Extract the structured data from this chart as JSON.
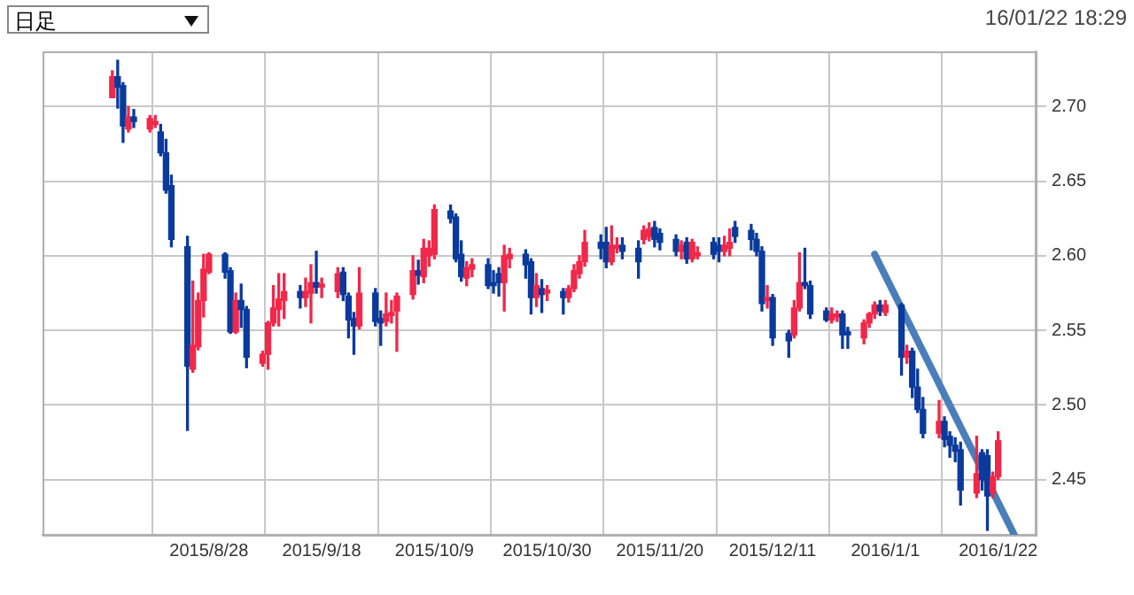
{
  "chart_data": {
    "type": "candlestick",
    "annotations": [
      "日足",
      "16/01/22 18:29"
    ],
    "x": [
      "2015-08-10",
      "2015-08-11",
      "2015-08-12",
      "2015-08-13",
      "2015-08-14",
      "2015-08-17",
      "2015-08-18",
      "2015-08-19",
      "2015-08-20",
      "2015-08-21",
      "2015-08-24",
      "2015-08-25",
      "2015-08-26",
      "2015-08-27",
      "2015-08-28",
      "2015-08-31",
      "2015-09-01",
      "2015-09-02",
      "2015-09-03",
      "2015-09-04",
      "2015-09-07",
      "2015-09-08",
      "2015-09-09",
      "2015-09-10",
      "2015-09-11",
      "2015-09-14",
      "2015-09-15",
      "2015-09-16",
      "2015-09-17",
      "2015-09-18",
      "2015-09-21",
      "2015-09-22",
      "2015-09-23",
      "2015-09-24",
      "2015-09-25",
      "2015-09-28",
      "2015-09-29",
      "2015-09-30",
      "2015-10-01",
      "2015-10-02",
      "2015-10-05",
      "2015-10-06",
      "2015-10-07",
      "2015-10-08",
      "2015-10-09",
      "2015-10-12",
      "2015-10-13",
      "2015-10-14",
      "2015-10-15",
      "2015-10-16",
      "2015-10-19",
      "2015-10-20",
      "2015-10-21",
      "2015-10-22",
      "2015-10-23",
      "2015-10-26",
      "2015-10-27",
      "2015-10-28",
      "2015-10-29",
      "2015-10-30",
      "2015-11-02",
      "2015-11-03",
      "2015-11-04",
      "2015-11-05",
      "2015-11-06",
      "2015-11-09",
      "2015-11-10",
      "2015-11-11",
      "2015-11-12",
      "2015-11-13",
      "2015-11-16",
      "2015-11-17",
      "2015-11-18",
      "2015-11-19",
      "2015-11-20",
      "2015-11-23",
      "2015-11-24",
      "2015-11-25",
      "2015-11-26",
      "2015-11-27",
      "2015-11-30",
      "2015-12-01",
      "2015-12-02",
      "2015-12-03",
      "2015-12-04",
      "2015-12-07",
      "2015-12-08",
      "2015-12-09",
      "2015-12-10",
      "2015-12-11",
      "2015-12-14",
      "2015-12-15",
      "2015-12-16",
      "2015-12-17",
      "2015-12-18",
      "2015-12-21",
      "2015-12-22",
      "2015-12-23",
      "2015-12-24",
      "2015-12-25",
      "2015-12-28",
      "2015-12-29",
      "2015-12-30",
      "2015-12-31",
      "2016-01-01",
      "2016-01-04",
      "2016-01-05",
      "2016-01-06",
      "2016-01-07",
      "2016-01-08",
      "2016-01-11",
      "2016-01-12",
      "2016-01-13",
      "2016-01-14",
      "2016-01-15",
      "2016-01-18",
      "2016-01-19",
      "2016-01-20",
      "2016-01-21",
      "2016-01-22"
    ],
    "ohlc": [
      [
        2.706,
        2.724,
        2.706,
        2.72
      ],
      [
        2.72,
        2.731,
        2.699,
        2.713
      ],
      [
        2.714,
        2.716,
        2.676,
        2.687
      ],
      [
        2.685,
        2.7,
        2.683,
        2.693
      ],
      [
        2.693,
        2.698,
        2.686,
        2.69
      ],
      [
        2.685,
        2.694,
        2.683,
        2.692
      ],
      [
        2.688,
        2.694,
        2.686,
        2.69
      ],
      [
        2.683,
        2.688,
        2.667,
        2.669
      ],
      [
        2.669,
        2.678,
        2.642,
        2.644
      ],
      [
        2.647,
        2.654,
        2.606,
        2.611
      ],
      [
        2.606,
        2.613,
        2.483,
        2.526
      ],
      [
        2.524,
        2.583,
        2.522,
        2.54
      ],
      [
        2.539,
        2.575,
        2.537,
        2.57
      ],
      [
        2.57,
        2.601,
        2.559,
        2.591
      ],
      [
        2.589,
        2.602,
        2.588,
        2.601
      ],
      [
        2.601,
        2.602,
        2.585,
        2.589
      ],
      [
        2.59,
        2.592,
        2.548,
        2.549
      ],
      [
        2.549,
        2.575,
        2.548,
        2.57
      ],
      [
        2.57,
        2.581,
        2.552,
        2.564
      ],
      [
        2.564,
        2.566,
        2.525,
        2.532
      ],
      [
        2.528,
        2.536,
        2.526,
        2.534
      ],
      [
        2.534,
        2.556,
        2.524,
        2.555
      ],
      [
        2.555,
        2.58,
        2.553,
        2.565
      ],
      [
        2.564,
        2.588,
        2.553,
        2.571
      ],
      [
        2.57,
        2.588,
        2.558,
        2.576
      ],
      [
        2.576,
        2.58,
        2.565,
        2.572
      ],
      [
        2.572,
        2.585,
        2.566,
        2.576
      ],
      [
        2.575,
        2.594,
        2.555,
        2.582
      ],
      [
        2.582,
        2.603,
        2.575,
        2.579
      ],
      [
        2.579,
        2.585,
        2.572,
        2.581
      ],
      [
        2.576,
        2.592,
        2.572,
        2.588
      ],
      [
        2.589,
        2.592,
        2.57,
        2.574
      ],
      [
        2.573,
        2.575,
        2.545,
        2.557
      ],
      [
        2.558,
        2.562,
        2.534,
        2.553
      ],
      [
        2.553,
        2.592,
        2.551,
        2.575
      ],
      [
        2.575,
        2.578,
        2.553,
        2.556
      ],
      [
        2.558,
        2.563,
        2.54,
        2.555
      ],
      [
        2.556,
        2.575,
        2.553,
        2.561
      ],
      [
        2.56,
        2.57,
        2.555,
        2.562
      ],
      [
        2.563,
        2.575,
        2.536,
        2.573
      ],
      [
        2.574,
        2.6,
        2.571,
        2.59
      ],
      [
        2.59,
        2.597,
        2.581,
        2.587
      ],
      [
        2.586,
        2.611,
        2.582,
        2.605
      ],
      [
        2.6,
        2.61,
        2.593,
        2.605
      ],
      [
        2.601,
        2.634,
        2.598,
        2.631
      ],
      [
        2.63,
        2.634,
        2.622,
        2.625
      ],
      [
        2.626,
        2.628,
        2.596,
        2.598
      ],
      [
        2.601,
        2.61,
        2.583,
        2.586
      ],
      [
        2.585,
        2.596,
        2.58,
        2.592
      ],
      [
        2.591,
        2.598,
        2.586,
        2.594
      ],
      [
        2.594,
        2.598,
        2.578,
        2.58
      ],
      [
        2.582,
        2.59,
        2.575,
        2.58
      ],
      [
        2.588,
        2.592,
        2.573,
        2.582
      ],
      [
        2.582,
        2.607,
        2.563,
        2.6
      ],
      [
        2.598,
        2.605,
        2.592,
        2.601
      ],
      [
        2.601,
        2.604,
        2.585,
        2.594
      ],
      [
        2.596,
        2.598,
        2.561,
        2.572
      ],
      [
        2.572,
        2.588,
        2.566,
        2.58
      ],
      [
        2.578,
        2.584,
        2.562,
        2.574
      ],
      [
        2.575,
        2.58,
        2.57,
        2.577
      ],
      [
        2.576,
        2.578,
        2.561,
        2.572
      ],
      [
        2.572,
        2.58,
        2.569,
        2.578
      ],
      [
        2.578,
        2.594,
        2.576,
        2.59
      ],
      [
        2.588,
        2.6,
        2.585,
        2.596
      ],
      [
        2.596,
        2.617,
        2.593,
        2.609
      ],
      [
        2.609,
        2.614,
        2.598,
        2.605
      ],
      [
        2.609,
        2.619,
        2.592,
        2.596
      ],
      [
        2.596,
        2.62,
        2.594,
        2.607
      ],
      [
        2.605,
        2.612,
        2.602,
        2.607
      ],
      [
        2.607,
        2.612,
        2.598,
        2.603
      ],
      [
        2.605,
        2.61,
        2.585,
        2.596
      ],
      [
        2.611,
        2.62,
        2.608,
        2.617
      ],
      [
        2.613,
        2.622,
        2.61,
        2.618
      ],
      [
        2.619,
        2.623,
        2.606,
        2.611
      ],
      [
        2.615,
        2.618,
        2.604,
        2.609
      ],
      [
        2.611,
        2.614,
        2.6,
        2.603
      ],
      [
        2.603,
        2.61,
        2.598,
        2.607
      ],
      [
        2.609,
        2.612,
        2.595,
        2.598
      ],
      [
        2.598,
        2.611,
        2.596,
        2.609
      ],
      [
        2.6,
        2.606,
        2.598,
        2.602
      ],
      [
        2.609,
        2.612,
        2.598,
        2.601
      ],
      [
        2.607,
        2.612,
        2.596,
        2.603
      ],
      [
        2.603,
        2.613,
        2.6,
        2.607
      ],
      [
        2.605,
        2.618,
        2.6,
        2.609
      ],
      [
        2.619,
        2.623,
        2.609,
        2.613
      ],
      [
        2.617,
        2.621,
        2.604,
        2.611
      ],
      [
        2.611,
        2.615,
        2.6,
        2.603
      ],
      [
        2.603,
        2.606,
        2.563,
        2.568
      ],
      [
        2.57,
        2.58,
        2.565,
        2.572
      ],
      [
        2.572,
        2.574,
        2.54,
        2.545
      ],
      [
        2.548,
        2.55,
        2.532,
        2.543
      ],
      [
        2.547,
        2.57,
        2.545,
        2.565
      ],
      [
        2.565,
        2.602,
        2.563,
        2.582
      ],
      [
        2.582,
        2.605,
        2.578,
        2.58
      ],
      [
        2.58,
        2.583,
        2.558,
        2.561
      ],
      [
        2.563,
        2.565,
        2.556,
        2.557
      ],
      [
        2.557,
        2.565,
        2.555,
        2.561
      ],
      [
        2.559,
        2.563,
        2.556,
        2.561
      ],
      [
        2.561,
        2.563,
        2.538,
        2.547
      ],
      [
        2.549,
        2.552,
        2.538,
        2.547
      ],
      [
        2.545,
        2.557,
        2.541,
        2.555
      ],
      [
        2.555,
        2.562,
        2.552,
        2.561
      ],
      [
        2.561,
        2.569,
        2.558,
        2.567
      ],
      [
        2.567,
        2.57,
        2.56,
        2.563
      ],
      [
        2.562,
        2.57,
        2.56,
        2.567
      ],
      [
        2.567,
        2.568,
        2.52,
        2.532
      ],
      [
        2.532,
        2.54,
        2.528,
        2.536
      ],
      [
        2.536,
        2.538,
        2.505,
        2.512
      ],
      [
        2.512,
        2.524,
        2.495,
        2.497
      ],
      [
        2.497,
        2.505,
        2.478,
        2.481
      ],
      [
        2.481,
        2.503,
        2.478,
        2.489
      ],
      [
        2.489,
        2.492,
        2.472,
        2.477
      ],
      [
        2.479,
        2.482,
        2.465,
        2.473
      ],
      [
        2.473,
        2.478,
        2.462,
        2.469
      ],
      [
        2.47,
        2.475,
        2.433,
        2.443
      ],
      [
        2.441,
        2.479,
        2.438,
        2.454
      ],
      [
        2.468,
        2.47,
        2.443,
        2.45
      ],
      [
        2.466,
        2.47,
        2.416,
        2.439
      ],
      [
        2.441,
        2.455,
        2.438,
        2.452
      ],
      [
        2.452,
        2.482,
        2.45,
        2.476
      ]
    ],
    "colors": [
      "#f0284a",
      "#0a3a9c",
      "#0a3a9c",
      "#f0284a",
      "#0a3a9c",
      "#f0284a",
      "#f0284a",
      "#0a3a9c",
      "#0a3a9c",
      "#0a3a9c",
      "#0a3a9c",
      "#f0284a",
      "#f0284a",
      "#f0284a",
      "#f0284a",
      "#0a3a9c",
      "#0a3a9c",
      "#f0284a",
      "#0a3a9c",
      "#0a3a9c",
      "#f0284a",
      "#f0284a",
      "#f0284a",
      "#f0284a",
      "#f0284a",
      "#0a3a9c",
      "#f0284a",
      "#f0284a",
      "#0a3a9c",
      "#f0284a",
      "#f0284a",
      "#0a3a9c",
      "#0a3a9c",
      "#0a3a9c",
      "#f0284a",
      "#0a3a9c",
      "#0a3a9c",
      "#f0284a",
      "#f0284a",
      "#f0284a",
      "#f0284a",
      "#0a3a9c",
      "#f0284a",
      "#f0284a",
      "#f0284a",
      "#0a3a9c",
      "#0a3a9c",
      "#0a3a9c",
      "#f0284a",
      "#f0284a",
      "#0a3a9c",
      "#0a3a9c",
      "#0a3a9c",
      "#f0284a",
      "#f0284a",
      "#0a3a9c",
      "#0a3a9c",
      "#f0284a",
      "#0a3a9c",
      "#f0284a",
      "#0a3a9c",
      "#f0284a",
      "#f0284a",
      "#f0284a",
      "#f0284a",
      "#0a3a9c",
      "#0a3a9c",
      "#f0284a",
      "#f0284a",
      "#0a3a9c",
      "#0a3a9c",
      "#f0284a",
      "#f0284a",
      "#0a3a9c",
      "#0a3a9c",
      "#0a3a9c",
      "#f0284a",
      "#0a3a9c",
      "#f0284a",
      "#f0284a",
      "#0a3a9c",
      "#0a3a9c",
      "#f0284a",
      "#f0284a",
      "#0a3a9c",
      "#0a3a9c",
      "#0a3a9c",
      "#0a3a9c",
      "#f0284a",
      "#0a3a9c",
      "#0a3a9c",
      "#f0284a",
      "#f0284a",
      "#0a3a9c",
      "#0a3a9c",
      "#0a3a9c",
      "#f0284a",
      "#f0284a",
      "#0a3a9c",
      "#0a3a9c",
      "#f0284a",
      "#f0284a",
      "#f0284a",
      "#0a3a9c",
      "#f0284a",
      "#0a3a9c",
      "#f0284a",
      "#0a3a9c",
      "#0a3a9c",
      "#0a3a9c",
      "#f0284a",
      "#0a3a9c",
      "#0a3a9c",
      "#0a3a9c",
      "#0a3a9c",
      "#f0284a",
      "#0a3a9c",
      "#0a3a9c",
      "#f0284a",
      "#f0284a"
    ],
    "series": [
      {
        "type": "line",
        "color": "#4a7ebb",
        "x": [
          "2015-12-30",
          "2016-01-25"
        ],
        "values": [
          2.601,
          2.413
        ]
      }
    ],
    "xlim": [
      "2015-07-28",
      "2016-01-29"
    ],
    "xticks": [
      {
        "value": "2015-08-28",
        "label": "2015/8/28"
      },
      {
        "value": "2015-09-18",
        "label": "2015/9/18"
      },
      {
        "value": "2015-10-09",
        "label": "2015/10/9"
      },
      {
        "value": "2015-10-30",
        "label": "2015/10/30"
      },
      {
        "value": "2015-11-20",
        "label": "2015/11/20"
      },
      {
        "value": "2015-12-11",
        "label": "2015/12/11"
      },
      {
        "value": "2016-01-01",
        "label": "2016/1/1"
      },
      {
        "value": "2016-01-22",
        "label": "2016/1/22"
      }
    ],
    "ylim": [
      2.413,
      2.737
    ],
    "yticks": [
      2.45,
      {
        "value": 2.5,
        "label": "2.50"
      },
      2.55,
      {
        "value": 2.6,
        "label": "2.60"
      },
      2.65,
      {
        "value": 2.7,
        "label": "2.70"
      }
    ],
    "grid": true,
    "legend": false
  }
}
